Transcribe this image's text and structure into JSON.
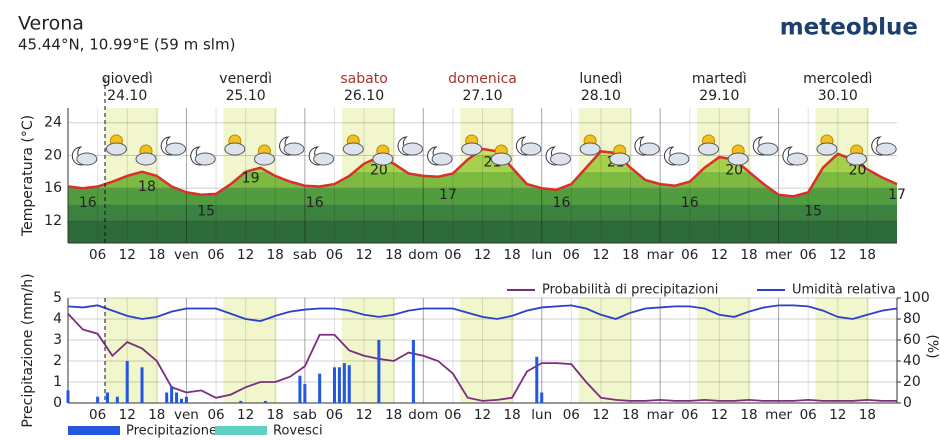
{
  "header": {
    "title": "Verona",
    "subtitle": "45.44°N, 10.99°E (59 m slm)",
    "logo": "meteoblue"
  },
  "days": [
    {
      "name": "giovedì",
      "date": "24.10",
      "color": "#222222"
    },
    {
      "name": "venerdì",
      "date": "25.10",
      "color": "#222222"
    },
    {
      "name": "sabato",
      "date": "26.10",
      "color": "#a8322d"
    },
    {
      "name": "domenica",
      "date": "27.10",
      "color": "#a8322d"
    },
    {
      "name": "lunedì",
      "date": "28.10",
      "color": "#222222"
    },
    {
      "name": "martedì",
      "date": "29.10",
      "color": "#222222"
    },
    {
      "name": "mercoledì",
      "date": "30.10",
      "color": "#222222"
    }
  ],
  "chart_data": [
    {
      "type": "line",
      "ylabel": "Temperatura (°C)",
      "grid": true,
      "xlim": [
        0,
        168
      ],
      "ylim": [
        9.3,
        25.8
      ],
      "yticks": [
        12,
        16,
        20,
        24
      ],
      "xticks": [
        {
          "value": 6,
          "label": "06"
        },
        12,
        18,
        {
          "value": 24,
          "label": "ven"
        },
        {
          "value": 30,
          "label": "06"
        },
        {
          "value": 36,
          "label": "12"
        },
        {
          "value": 42,
          "label": "18"
        },
        {
          "value": 48,
          "label": "sab"
        },
        {
          "value": 54,
          "label": "06"
        },
        {
          "value": 60,
          "label": "12"
        },
        {
          "value": 66,
          "label": "18"
        },
        {
          "value": 72,
          "label": "dom"
        },
        {
          "value": 78,
          "label": "06"
        },
        {
          "value": 84,
          "label": "12"
        },
        {
          "value": 90,
          "label": "18"
        },
        {
          "value": 96,
          "label": "lun"
        },
        {
          "value": 102,
          "label": "06"
        },
        {
          "value": 108,
          "label": "12"
        },
        {
          "value": 114,
          "label": "18"
        },
        {
          "value": 120,
          "label": "mar"
        },
        {
          "value": 126,
          "label": "06"
        },
        {
          "value": 132,
          "label": "12"
        },
        {
          "value": 138,
          "label": "18"
        },
        {
          "value": 144,
          "label": "mer"
        },
        {
          "value": 150,
          "label": "06"
        },
        {
          "value": 156,
          "label": "12"
        },
        {
          "value": 162,
          "label": "18"
        }
      ],
      "x": [
        0,
        3,
        6,
        9,
        12,
        15,
        18,
        21,
        24,
        27,
        30,
        33,
        36,
        39,
        42,
        45,
        48,
        51,
        54,
        57,
        60,
        63,
        66,
        69,
        72,
        75,
        78,
        81,
        84,
        87,
        90,
        93,
        96,
        99,
        102,
        105,
        108,
        111,
        114,
        117,
        120,
        123,
        126,
        129,
        132,
        135,
        138,
        141,
        144,
        147,
        150,
        153,
        156,
        159,
        162,
        165,
        168
      ],
      "color": "#d9302a",
      "values": [
        16.2,
        16,
        16.2,
        16.8,
        17.5,
        18,
        17.5,
        16.2,
        15.5,
        15.2,
        15.3,
        16.5,
        18,
        18.5,
        17.5,
        16.8,
        16.3,
        16.2,
        16.5,
        17.5,
        19,
        19.8,
        19,
        17.8,
        17.5,
        17.4,
        17.8,
        19.5,
        20.8,
        20.5,
        18.5,
        16.5,
        16,
        15.8,
        16.5,
        18.5,
        20.5,
        20.3,
        18.5,
        17,
        16.5,
        16.3,
        16.8,
        18.5,
        19.8,
        19.5,
        18,
        16.5,
        15.2,
        15,
        15.5,
        18.5,
        20.2,
        19.5,
        18.3,
        17.3,
        16.5
      ],
      "labels": {
        "x": [
          4,
          16,
          28,
          37,
          50,
          63,
          77,
          86,
          100,
          111,
          126,
          135,
          151,
          160,
          168
        ],
        "values": [
          16,
          18,
          15,
          19,
          16,
          20,
          17,
          21,
          16,
          21,
          16,
          20,
          15,
          20,
          17
        ]
      }
    },
    {
      "type": "bar",
      "ylabel": "Precipitazione (mm/h)",
      "y2label": "(%)",
      "grid": true,
      "xlim": [
        0,
        168
      ],
      "ylim": [
        0,
        5
      ],
      "yticks": [
        0,
        1,
        2,
        3,
        4,
        5
      ],
      "y2lim": [
        0,
        100
      ],
      "y2ticks": [
        0,
        20,
        40,
        60,
        80,
        100
      ],
      "xticks": [
        {
          "value": 6,
          "label": "06"
        },
        12,
        18,
        {
          "value": 24,
          "label": "ven"
        },
        {
          "value": 30,
          "label": "06"
        },
        {
          "value": 36,
          "label": "12"
        },
        {
          "value": 42,
          "label": "18"
        },
        {
          "value": 48,
          "label": "sab"
        },
        {
          "value": 54,
          "label": "06"
        },
        {
          "value": 60,
          "label": "12"
        },
        {
          "value": 66,
          "label": "18"
        },
        {
          "value": 72,
          "label": "dom"
        },
        {
          "value": 78,
          "label": "06"
        },
        {
          "value": 84,
          "label": "12"
        },
        {
          "value": 90,
          "label": "18"
        },
        {
          "value": 96,
          "label": "lun"
        },
        {
          "value": 102,
          "label": "06"
        },
        {
          "value": 108,
          "label": "12"
        },
        {
          "value": 114,
          "label": "18"
        },
        {
          "value": 120,
          "label": "mar"
        },
        {
          "value": 126,
          "label": "06"
        },
        {
          "value": 132,
          "label": "12"
        },
        {
          "value": 138,
          "label": "18"
        },
        {
          "value": 144,
          "label": "mer"
        },
        {
          "value": 150,
          "label": "06"
        },
        {
          "value": 156,
          "label": "12"
        },
        {
          "value": 162,
          "label": "18"
        }
      ],
      "x": [
        0,
        3,
        6,
        9,
        12,
        15,
        18,
        21,
        24,
        27,
        30,
        33,
        36,
        39,
        42,
        45,
        48,
        51,
        54,
        57,
        60,
        63,
        66,
        69,
        72,
        75,
        78,
        81,
        84,
        87,
        90,
        93,
        96,
        99,
        102,
        105,
        108,
        111,
        114,
        117,
        120,
        123,
        126,
        129,
        132,
        135,
        138,
        141,
        144,
        147,
        150,
        153,
        156,
        159,
        162,
        165,
        168
      ],
      "series": [
        {
          "name": "Probabilità di precipitazioni",
          "color": "#7b2d80",
          "axis": "y2",
          "type": "line",
          "values": [
            85,
            70,
            66,
            45,
            58,
            52,
            40,
            15,
            10,
            12,
            5,
            8,
            15,
            20,
            20,
            25,
            35,
            65,
            65,
            50,
            45,
            42,
            40,
            48,
            45,
            40,
            28,
            5,
            2,
            3,
            5,
            30,
            38,
            38,
            37,
            20,
            5,
            3,
            2,
            2,
            3,
            2,
            2,
            3,
            2,
            2,
            3,
            2,
            2,
            2,
            3,
            2,
            2,
            2,
            3,
            2,
            2
          ]
        },
        {
          "name": "Umidità relativa",
          "color": "#2b3fc8",
          "axis": "y2",
          "type": "line",
          "values": [
            92,
            91,
            93,
            88,
            83,
            80,
            82,
            87,
            90,
            90,
            90,
            85,
            80,
            78,
            83,
            87,
            89,
            90,
            90,
            88,
            84,
            82,
            84,
            88,
            90,
            90,
            90,
            86,
            82,
            80,
            83,
            88,
            91,
            92,
            93,
            90,
            84,
            80,
            86,
            90,
            91,
            92,
            92,
            90,
            84,
            82,
            87,
            91,
            93,
            93,
            92,
            88,
            82,
            80,
            84,
            88,
            90
          ]
        },
        {
          "name": "Precipitazione",
          "color": "#2457e0",
          "type": "bar",
          "x": [
            0,
            6,
            8,
            10,
            12,
            15,
            20,
            21,
            22,
            23,
            24,
            35,
            40,
            47,
            48,
            51,
            54,
            55,
            56,
            57,
            63,
            70,
            95,
            96
          ],
          "values": [
            0.6,
            0.3,
            0.5,
            0.3,
            2.0,
            1.7,
            0.5,
            0.8,
            0.5,
            0.2,
            0.3,
            0.1,
            0.1,
            1.3,
            0.9,
            1.4,
            1.7,
            1.7,
            1.9,
            1.8,
            3.0,
            3.0,
            2.2,
            0.5
          ]
        },
        {
          "name": "Rovesci",
          "color": "#5ed1c3",
          "type": "bar",
          "x": [],
          "values": []
        }
      ]
    }
  ]
}
